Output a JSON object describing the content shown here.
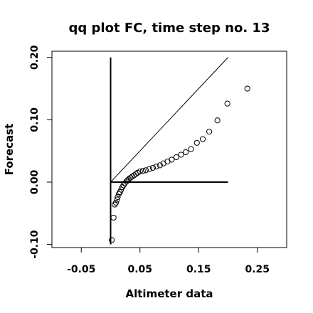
{
  "chart_data": {
    "type": "scatter",
    "title": "qq plot FC, time step no. 13",
    "xlabel": "Altimeter data",
    "ylabel": "Forecast",
    "xlim": [
      -0.1,
      0.3
    ],
    "ylim": [
      -0.105,
      0.21
    ],
    "xticks": [
      -0.05,
      0.05,
      0.15,
      0.25
    ],
    "xtick_labels": [
      "-0.05",
      "0.05",
      "0.15",
      "0.25"
    ],
    "yticks": [
      -0.1,
      0.0,
      0.1,
      0.2
    ],
    "ytick_labels": [
      "-0.10",
      "0.00",
      "0.10",
      "0.20"
    ],
    "grid": false,
    "legend": "none",
    "reference_lines": [
      {
        "name": "identity",
        "x": [
          0.0,
          0.2
        ],
        "y": [
          0.0,
          0.2
        ]
      },
      {
        "name": "x-axis-segment",
        "x": [
          0.0,
          0.2
        ],
        "y": [
          0.0,
          0.0
        ]
      },
      {
        "name": "y-axis-segment",
        "x": [
          0.0,
          0.0
        ],
        "y": [
          -0.1,
          0.2
        ]
      }
    ],
    "points": [
      [
        0.002,
        -0.093
      ],
      [
        0.005,
        -0.057
      ],
      [
        0.007,
        -0.036
      ],
      [
        0.009,
        -0.033
      ],
      [
        0.011,
        -0.028
      ],
      [
        0.012,
        -0.024
      ],
      [
        0.014,
        -0.019
      ],
      [
        0.016,
        -0.016
      ],
      [
        0.018,
        -0.012
      ],
      [
        0.02,
        -0.008
      ],
      [
        0.022,
        -0.005
      ],
      [
        0.024,
        -0.002
      ],
      [
        0.027,
        0.001
      ],
      [
        0.029,
        0.003
      ],
      [
        0.031,
        0.005
      ],
      [
        0.034,
        0.007
      ],
      [
        0.037,
        0.009
      ],
      [
        0.04,
        0.011
      ],
      [
        0.043,
        0.013
      ],
      [
        0.046,
        0.015
      ],
      [
        0.05,
        0.017
      ],
      [
        0.055,
        0.018
      ],
      [
        0.06,
        0.019
      ],
      [
        0.066,
        0.021
      ],
      [
        0.072,
        0.023
      ],
      [
        0.078,
        0.025
      ],
      [
        0.084,
        0.027
      ],
      [
        0.09,
        0.03
      ],
      [
        0.097,
        0.033
      ],
      [
        0.104,
        0.036
      ],
      [
        0.112,
        0.04
      ],
      [
        0.12,
        0.044
      ],
      [
        0.128,
        0.048
      ],
      [
        0.137,
        0.053
      ],
      [
        0.147,
        0.063
      ],
      [
        0.157,
        0.069
      ],
      [
        0.168,
        0.081
      ],
      [
        0.182,
        0.099
      ],
      [
        0.199,
        0.126
      ],
      [
        0.233,
        0.15
      ]
    ],
    "colors": {
      "marks": "#000000",
      "background": "#ffffff"
    }
  }
}
